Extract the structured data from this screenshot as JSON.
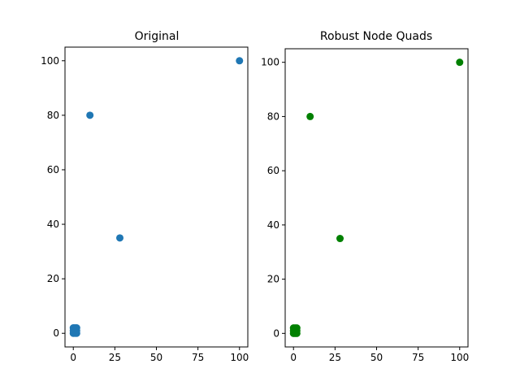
{
  "chart_data": [
    {
      "type": "scatter",
      "title": "Original",
      "xlabel": "",
      "ylabel": "",
      "xlim": [
        -5,
        105
      ],
      "ylim": [
        -5,
        105
      ],
      "xticks": [
        0,
        25,
        50,
        75,
        100
      ],
      "yticks": [
        0,
        20,
        40,
        60,
        80,
        100
      ],
      "grid": false,
      "color": "#1f77b4",
      "points": [
        {
          "x": 0,
          "y": 0
        },
        {
          "x": 2,
          "y": 0
        },
        {
          "x": 0,
          "y": 2
        },
        {
          "x": 2,
          "y": 2
        },
        {
          "x": 1,
          "y": 1
        },
        {
          "x": 0,
          "y": 1
        },
        {
          "x": 2,
          "y": 1
        },
        {
          "x": 1,
          "y": 0
        },
        {
          "x": 1,
          "y": 2
        },
        {
          "x": 10,
          "y": 80
        },
        {
          "x": 28,
          "y": 35
        },
        {
          "x": 100,
          "y": 100
        }
      ]
    },
    {
      "type": "scatter",
      "title": "Robust Node Quads",
      "xlabel": "",
      "ylabel": "",
      "xlim": [
        -5,
        105
      ],
      "ylim": [
        -5,
        105
      ],
      "xticks": [
        0,
        25,
        50,
        75,
        100
      ],
      "yticks": [
        0,
        20,
        40,
        60,
        80,
        100
      ],
      "grid": false,
      "color": "#008000",
      "points": [
        {
          "x": 0,
          "y": 0
        },
        {
          "x": 2,
          "y": 0
        },
        {
          "x": 0,
          "y": 2
        },
        {
          "x": 2,
          "y": 2
        },
        {
          "x": 1,
          "y": 1
        },
        {
          "x": 0,
          "y": 1
        },
        {
          "x": 2,
          "y": 1
        },
        {
          "x": 1,
          "y": 0
        },
        {
          "x": 1,
          "y": 2
        },
        {
          "x": 10,
          "y": 80
        },
        {
          "x": 28,
          "y": 35
        },
        {
          "x": 100,
          "y": 100
        }
      ]
    }
  ]
}
